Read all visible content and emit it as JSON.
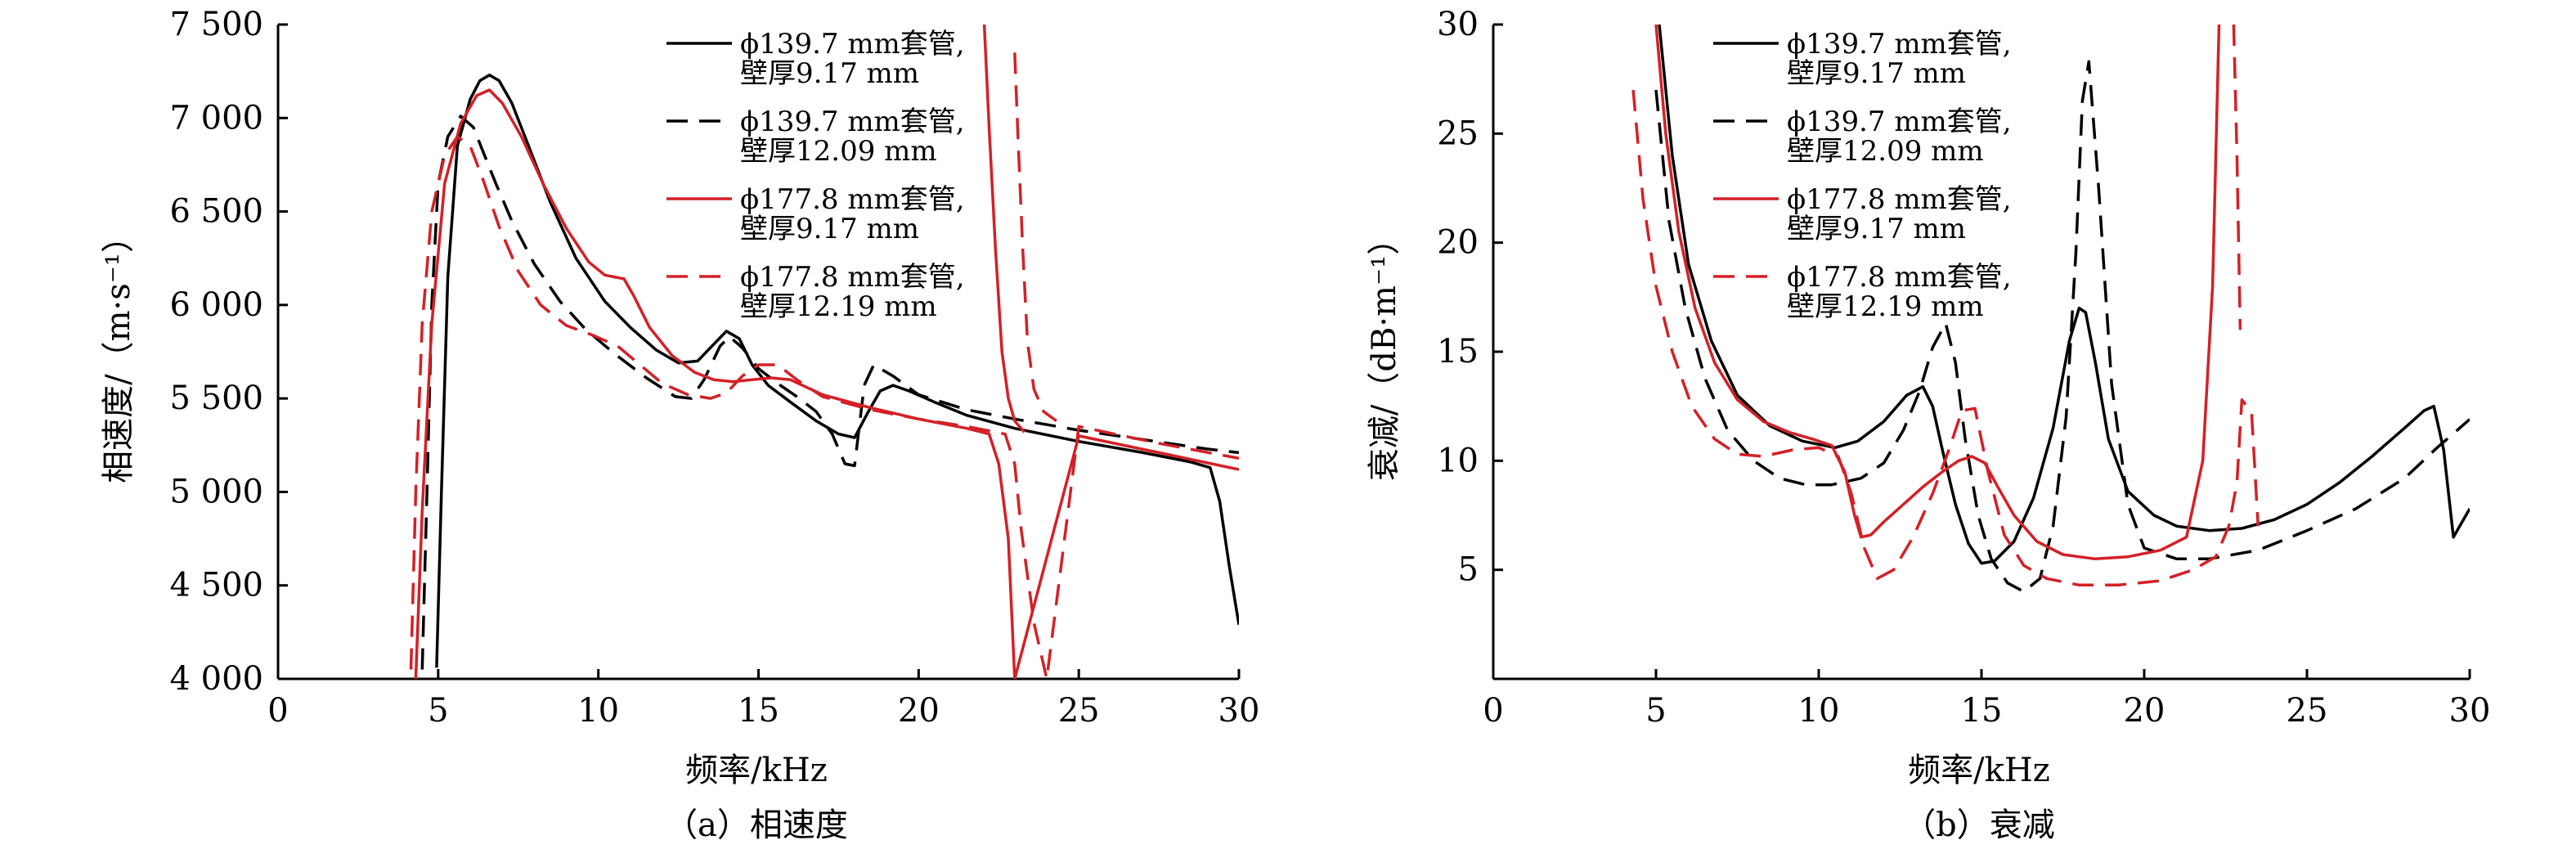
{
  "chart_data": [
    {
      "type": "line",
      "title": "",
      "caption": "（a）相速度",
      "xlabel": "频率/kHz",
      "ylabel": "相速度/（m·s⁻¹）",
      "xlim": [
        0,
        30
      ],
      "ylim": [
        4000,
        7500
      ],
      "xticks": [
        0,
        5,
        10,
        15,
        20,
        25,
        30
      ],
      "xtick_labels": [
        "0",
        "5",
        "10",
        "15",
        "20",
        "25",
        "30"
      ],
      "yticks": [
        4000,
        4500,
        5000,
        5500,
        6000,
        6500,
        7000,
        7500
      ],
      "ytick_labels": [
        "4 000",
        "4 500",
        "5 000",
        "5 500",
        "6 000",
        "6 500",
        "7 000",
        "7 500"
      ],
      "grid": false,
      "legend_position": "top-right",
      "series": [
        {
          "name": "ϕ139.7 mm套管,\n壁厚9.17 mm",
          "color": "#000000",
          "dash": "solid",
          "x": [
            4.95,
            5.1,
            5.3,
            5.6,
            6.0,
            6.3,
            6.6,
            6.9,
            7.3,
            7.8,
            8.5,
            9.3,
            10.2,
            11.0,
            11.8,
            12.5,
            13.1,
            13.6,
            14.0,
            14.4,
            14.8,
            15.3,
            16.0,
            16.8,
            17.5,
            18.0,
            18.4,
            18.8,
            19.2,
            19.7,
            20.5,
            21.5,
            23.0,
            25.0,
            27.0,
            28.5,
            29.1,
            29.4,
            29.7,
            30.0
          ],
          "y": [
            4060,
            5000,
            6150,
            6850,
            7100,
            7200,
            7230,
            7200,
            7080,
            6860,
            6550,
            6250,
            6020,
            5880,
            5760,
            5690,
            5700,
            5790,
            5860,
            5820,
            5680,
            5570,
            5480,
            5380,
            5310,
            5290,
            5420,
            5540,
            5570,
            5540,
            5480,
            5410,
            5340,
            5270,
            5210,
            5160,
            5130,
            4950,
            4600,
            4290
          ]
        },
        {
          "name": "ϕ139.7 mm套管,\n壁厚12.09 mm",
          "color": "#000000",
          "dash": "dashed",
          "x": [
            4.5,
            4.65,
            4.8,
            5.0,
            5.3,
            5.7,
            6.1,
            6.4,
            6.8,
            7.3,
            8.0,
            8.8,
            9.6,
            10.5,
            11.5,
            12.4,
            12.9,
            13.3,
            13.8,
            14.1,
            14.5,
            15.0,
            15.6,
            16.2,
            16.8,
            17.3,
            17.7,
            18.0,
            18.3,
            18.6,
            19.2,
            20.0,
            21.5,
            23.0,
            25.0,
            27.0,
            29.0,
            30.0
          ],
          "y": [
            4050,
            5000,
            6000,
            6650,
            6900,
            7010,
            6950,
            6820,
            6650,
            6450,
            6220,
            6020,
            5870,
            5740,
            5610,
            5510,
            5500,
            5600,
            5780,
            5830,
            5770,
            5660,
            5580,
            5510,
            5430,
            5310,
            5150,
            5140,
            5570,
            5680,
            5620,
            5520,
            5440,
            5390,
            5330,
            5280,
            5230,
            5210
          ]
        },
        {
          "name": "ϕ177.8 mm套管,\n壁厚9.17 mm",
          "color": "#d42027",
          "dash": "solid",
          "x": [
            4.3,
            4.5,
            4.8,
            5.2,
            5.7,
            6.2,
            6.6,
            7.0,
            7.6,
            8.3,
            9.0,
            9.7,
            10.2,
            10.5,
            10.8,
            11.1,
            11.6,
            12.3,
            13.0,
            13.6,
            14.2,
            14.8,
            15.4,
            16.0,
            17.0,
            18.5,
            20.0,
            21.5,
            22.2,
            22.5,
            22.8,
            23.0,
            25.0,
            27.5,
            30.0
          ],
          "y": [
            4000,
            4900,
            5900,
            6650,
            6970,
            7120,
            7150,
            7080,
            6900,
            6640,
            6410,
            6230,
            6160,
            6150,
            6140,
            6050,
            5880,
            5730,
            5640,
            5600,
            5590,
            5600,
            5610,
            5600,
            5520,
            5450,
            5390,
            5340,
            5310,
            5150,
            4750,
            4000,
            5300,
            5210,
            5120
          ]
        },
        {
          "name": "ϕ177.8 mm套管,\n壁厚12.19 mm",
          "color": "#d42027",
          "dash": "dashed",
          "x": [
            4.15,
            4.3,
            4.5,
            4.8,
            5.2,
            5.6,
            6.0,
            6.4,
            6.9,
            7.5,
            8.2,
            9.0,
            9.8,
            10.6,
            11.3,
            12.0,
            12.8,
            13.5,
            14.0,
            14.5,
            15.0,
            15.6,
            16.2,
            17.0,
            18.5,
            20.0,
            21.5,
            22.7,
            23.0,
            23.2,
            23.6,
            24.0,
            25.0,
            27.5,
            30.0
          ],
          "y": [
            4050,
            5000,
            5900,
            6500,
            6800,
            6900,
            6850,
            6670,
            6420,
            6180,
            6000,
            5890,
            5840,
            5780,
            5680,
            5580,
            5520,
            5500,
            5530,
            5620,
            5680,
            5680,
            5600,
            5510,
            5440,
            5390,
            5350,
            5310,
            5150,
            4800,
            4300,
            4000,
            5350,
            5260,
            5180
          ]
        }
      ],
      "branches": [
        {
          "series": "ϕ177.8 mm套管,\n壁厚9.17 mm",
          "x": [
            22.05,
            22.2,
            22.4,
            22.6,
            22.8,
            23.0,
            23.3
          ],
          "y": [
            7500,
            6950,
            6300,
            5750,
            5500,
            5380,
            5320
          ]
        },
        {
          "series": "ϕ177.8 mm套管,\n壁厚12.19 mm",
          "x": [
            23.0,
            23.1,
            23.25,
            23.4,
            23.6,
            23.9,
            24.3
          ],
          "y": [
            7350,
            6900,
            6300,
            5800,
            5550,
            5430,
            5380
          ]
        }
      ]
    },
    {
      "type": "line",
      "title": "",
      "caption": "（b）衰减",
      "xlabel": "频率/kHz",
      "ylabel": "衰减/（dB·m⁻¹）",
      "xlim": [
        0,
        30
      ],
      "ylim": [
        0,
        30
      ],
      "xticks": [
        0,
        5,
        10,
        15,
        20,
        25,
        30
      ],
      "xtick_labels": [
        "0",
        "5",
        "10",
        "15",
        "20",
        "25",
        "30"
      ],
      "yticks": [
        5,
        10,
        15,
        20,
        25,
        30
      ],
      "ytick_labels": [
        "5",
        "10",
        "15",
        "20",
        "25",
        "30"
      ],
      "grid": false,
      "legend_position": "top-right",
      "series": [
        {
          "name": "ϕ139.7 mm套管,\n壁厚9.17 mm",
          "color": "#000000",
          "dash": "solid",
          "x": [
            5.1,
            5.5,
            6.0,
            6.7,
            7.5,
            8.5,
            9.5,
            10.5,
            11.2,
            12.0,
            12.7,
            13.2,
            13.5,
            13.8,
            14.2,
            14.6,
            15.0,
            15.4,
            16.0,
            16.6,
            17.2,
            17.7,
            18.0,
            18.2,
            18.5,
            18.9,
            19.5,
            20.3,
            21.0,
            22.0,
            23.0,
            24.0,
            25.0,
            26.0,
            27.0,
            28.0,
            28.6,
            28.9,
            29.2,
            29.5,
            30.0
          ],
          "y": [
            30,
            24,
            19,
            15.5,
            13,
            11.6,
            10.9,
            10.6,
            10.9,
            11.8,
            13.0,
            13.4,
            12.5,
            10.5,
            8.0,
            6.2,
            5.3,
            5.4,
            6.3,
            8.3,
            11.5,
            15.5,
            17.0,
            16.8,
            14.5,
            11.0,
            8.6,
            7.5,
            7.0,
            6.8,
            6.9,
            7.3,
            8.0,
            9.0,
            10.2,
            11.5,
            12.3,
            12.5,
            10.5,
            6.5,
            7.8
          ]
        },
        {
          "name": "ϕ139.7 mm套管,\n壁厚12.09 mm",
          "color": "#000000",
          "dash": "dashed",
          "x": [
            5.0,
            5.4,
            5.9,
            6.5,
            7.2,
            8.0,
            8.8,
            9.6,
            10.4,
            11.3,
            12.0,
            12.6,
            13.1,
            13.5,
            13.9,
            14.2,
            14.5,
            14.9,
            15.3,
            15.8,
            16.3,
            16.8,
            17.2,
            17.6,
            17.9,
            18.1,
            18.3,
            18.6,
            19.0,
            19.5,
            20.0,
            21.0,
            22.0,
            23.5,
            25.0,
            26.5,
            28.0,
            29.0,
            30.0
          ],
          "y": [
            27,
            21,
            17,
            13.8,
            11.4,
            10.0,
            9.2,
            8.9,
            8.9,
            9.2,
            9.9,
            11.4,
            13.2,
            15.2,
            16.3,
            14.5,
            11.0,
            7.5,
            5.5,
            4.4,
            4.0,
            4.6,
            7.0,
            12.0,
            19.5,
            26.5,
            28.3,
            22.5,
            13.5,
            8.0,
            6.0,
            5.5,
            5.5,
            5.9,
            6.8,
            7.8,
            9.2,
            10.6,
            11.9
          ]
        },
        {
          "name": "ϕ177.8 mm套管,\n壁厚9.17 mm",
          "color": "#d42027",
          "dash": "solid",
          "x": [
            5.0,
            5.3,
            5.7,
            6.2,
            6.8,
            7.5,
            8.3,
            9.1,
            9.8,
            10.4,
            10.8,
            11.1,
            11.3,
            11.6,
            12.0,
            12.6,
            13.2,
            13.8,
            14.3,
            14.7,
            15.1,
            15.5,
            16.0,
            16.7,
            17.5,
            18.5,
            19.5,
            20.5,
            21.3,
            21.8,
            22.1,
            22.3
          ],
          "y": [
            30,
            25,
            20.5,
            17,
            14.5,
            12.8,
            11.8,
            11.3,
            11.0,
            10.7,
            9.5,
            7.5,
            6.5,
            6.6,
            7.2,
            8.0,
            8.8,
            9.5,
            10.0,
            10.2,
            9.9,
            8.8,
            7.5,
            6.3,
            5.7,
            5.5,
            5.6,
            5.9,
            6.5,
            10.0,
            18.0,
            30
          ]
        },
        {
          "name": "ϕ177.8 mm套管,\n壁厚12.19 mm",
          "color": "#d42027",
          "dash": "dashed",
          "x": [
            4.3,
            4.6,
            5.0,
            5.5,
            6.1,
            6.8,
            7.5,
            8.3,
            9.2,
            10.0,
            10.6,
            11.0,
            11.4,
            11.8,
            12.3,
            12.9,
            13.5,
            14.0,
            14.4,
            14.8,
            15.2,
            15.7,
            16.3,
            17.0,
            18.0,
            19.2,
            20.5,
            21.5,
            22.2,
            22.6,
            22.85,
            23.0,
            23.3,
            23.5
          ],
          "y": [
            27,
            22,
            18,
            15,
            12.5,
            11.0,
            10.3,
            10.2,
            10.5,
            10.6,
            10.2,
            8.5,
            6.0,
            4.6,
            5.0,
            6.5,
            8.5,
            10.5,
            12.3,
            12.4,
            9.5,
            6.6,
            5.2,
            4.6,
            4.3,
            4.3,
            4.5,
            5.0,
            5.6,
            7.0,
            9.0,
            12.8,
            12.2,
            7.0
          ]
        }
      ],
      "branches": [
        {
          "series": "ϕ177.8 mm套管,\n壁厚12.19 mm",
          "x": [
            22.75,
            22.85,
            22.95
          ],
          "y": [
            30,
            24,
            16
          ]
        }
      ]
    }
  ]
}
